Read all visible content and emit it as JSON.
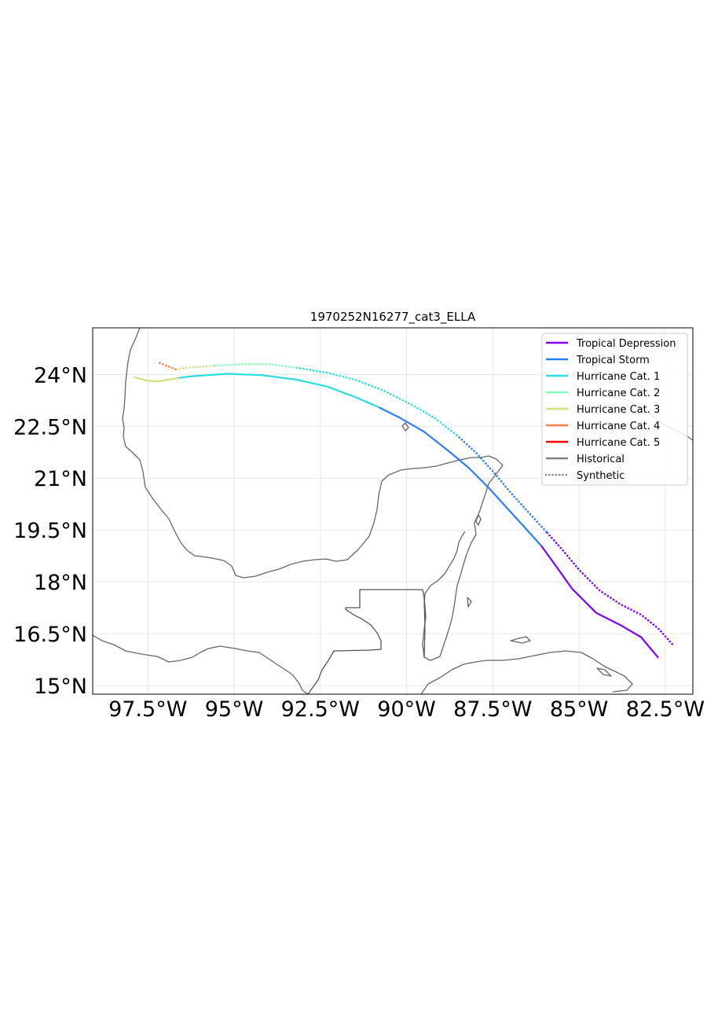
{
  "chart_data": {
    "type": "map",
    "title": "1970252N16277_cat3_ELLA",
    "xlim": [
      -99.1,
      -81.7
    ],
    "ylim": [
      14.75,
      25.35
    ],
    "x_ticks": [
      {
        "value": -97.5,
        "label": "97.5°W"
      },
      {
        "value": -95.0,
        "label": "95°W"
      },
      {
        "value": -92.5,
        "label": "92.5°W"
      },
      {
        "value": -90.0,
        "label": "90°W"
      },
      {
        "value": -87.5,
        "label": "87.5°W"
      },
      {
        "value": -85.0,
        "label": "85°W"
      },
      {
        "value": -82.5,
        "label": "82.5°W"
      }
    ],
    "y_ticks": [
      {
        "value": 24.0,
        "label": "24°N"
      },
      {
        "value": 22.5,
        "label": "22.5°N"
      },
      {
        "value": 21.0,
        "label": "21°N"
      },
      {
        "value": 19.5,
        "label": "19.5°N"
      },
      {
        "value": 18.0,
        "label": "18°N"
      },
      {
        "value": 16.5,
        "label": "16.5°N"
      },
      {
        "value": 15.0,
        "label": "15°N"
      }
    ],
    "grid": true,
    "legend_position": "top-right",
    "legend": [
      {
        "label": "Tropical Depression",
        "color": "#8000ff",
        "style": "solid"
      },
      {
        "label": "Tropical Storm",
        "color": "#2c7ef7",
        "style": "solid"
      },
      {
        "label": "Hurricane Cat. 1",
        "color": "#2adddd",
        "style": "solid"
      },
      {
        "label": "Hurricane Cat. 2",
        "color": "#80ffb4",
        "style": "solid"
      },
      {
        "label": "Hurricane Cat. 3",
        "color": "#d4dd80",
        "style": "solid"
      },
      {
        "label": "Hurricane Cat. 4",
        "color": "#ff7e44",
        "style": "solid"
      },
      {
        "label": "Hurricane Cat. 5",
        "color": "#ff0000",
        "style": "solid"
      },
      {
        "label": "Historical",
        "color": "#808080",
        "style": "solid"
      },
      {
        "label": "Synthetic",
        "color": "#808080",
        "style": "dotted"
      }
    ],
    "tracks": [
      {
        "kind": "historical",
        "segments": [
          {
            "category": 0,
            "color": "#8000ff",
            "points": [
              [
                -82.7,
                15.8
              ],
              [
                -83.2,
                16.4
              ],
              [
                -83.8,
                16.75
              ],
              [
                -84.5,
                17.1
              ],
              [
                -85.2,
                17.8
              ],
              [
                -85.7,
                18.5
              ],
              [
                -86.1,
                19.05
              ]
            ]
          },
          {
            "category": 1,
            "color": "#2c7ef7",
            "points": [
              [
                -86.1,
                19.05
              ],
              [
                -86.6,
                19.6
              ],
              [
                -87.1,
                20.15
              ],
              [
                -87.6,
                20.7
              ],
              [
                -88.2,
                21.3
              ],
              [
                -88.8,
                21.8
              ],
              [
                -89.5,
                22.35
              ],
              [
                -90.2,
                22.75
              ],
              [
                -90.8,
                23.05
              ]
            ]
          },
          {
            "category": 2,
            "color": "#2adddd",
            "points": [
              [
                -90.8,
                23.05
              ],
              [
                -91.5,
                23.35
              ],
              [
                -92.3,
                23.65
              ],
              [
                -93.2,
                23.85
              ],
              [
                -94.2,
                23.98
              ],
              [
                -95.2,
                24.02
              ],
              [
                -96.2,
                23.95
              ],
              [
                -96.6,
                23.9
              ]
            ]
          },
          {
            "category": 4,
            "color": "#d4dd80",
            "points": [
              [
                -96.6,
                23.9
              ],
              [
                -97.2,
                23.8
              ],
              [
                -97.5,
                23.82
              ],
              [
                -97.9,
                23.92
              ]
            ]
          }
        ]
      },
      {
        "kind": "synthetic",
        "segments": [
          {
            "category": 0,
            "color": "#8000ff",
            "points": [
              [
                -82.3,
                16.2
              ],
              [
                -82.7,
                16.65
              ],
              [
                -83.2,
                17.05
              ],
              [
                -83.8,
                17.35
              ],
              [
                -84.4,
                17.75
              ],
              [
                -85.0,
                18.35
              ],
              [
                -85.5,
                18.95
              ],
              [
                -85.95,
                19.45
              ]
            ]
          },
          {
            "category": 1,
            "color": "#2c7ef7",
            "points": [
              [
                -85.95,
                19.45
              ],
              [
                -86.5,
                20.05
              ],
              [
                -87.0,
                20.6
              ],
              [
                -87.5,
                21.2
              ],
              [
                -88.0,
                21.75
              ],
              [
                -88.55,
                22.25
              ]
            ]
          },
          {
            "category": 2,
            "color": "#2adddd",
            "points": [
              [
                -88.55,
                22.25
              ],
              [
                -89.2,
                22.75
              ],
              [
                -89.9,
                23.15
              ],
              [
                -90.7,
                23.55
              ],
              [
                -91.5,
                23.85
              ],
              [
                -92.3,
                24.05
              ],
              [
                -93.2,
                24.2
              ]
            ]
          },
          {
            "category": 3,
            "color": "#80ffb4",
            "points": [
              [
                -93.2,
                24.2
              ],
              [
                -94.0,
                24.3
              ],
              [
                -94.8,
                24.3
              ],
              [
                -95.6,
                24.25
              ]
            ]
          },
          {
            "category": 4,
            "color": "#d4dd80",
            "points": [
              [
                -95.6,
                24.25
              ],
              [
                -96.3,
                24.2
              ],
              [
                -96.7,
                24.15
              ]
            ]
          },
          {
            "category": 5,
            "color": "#ff7e44",
            "points": [
              [
                -96.7,
                24.15
              ],
              [
                -96.95,
                24.25
              ],
              [
                -97.2,
                24.35
              ]
            ]
          }
        ]
      }
    ]
  }
}
